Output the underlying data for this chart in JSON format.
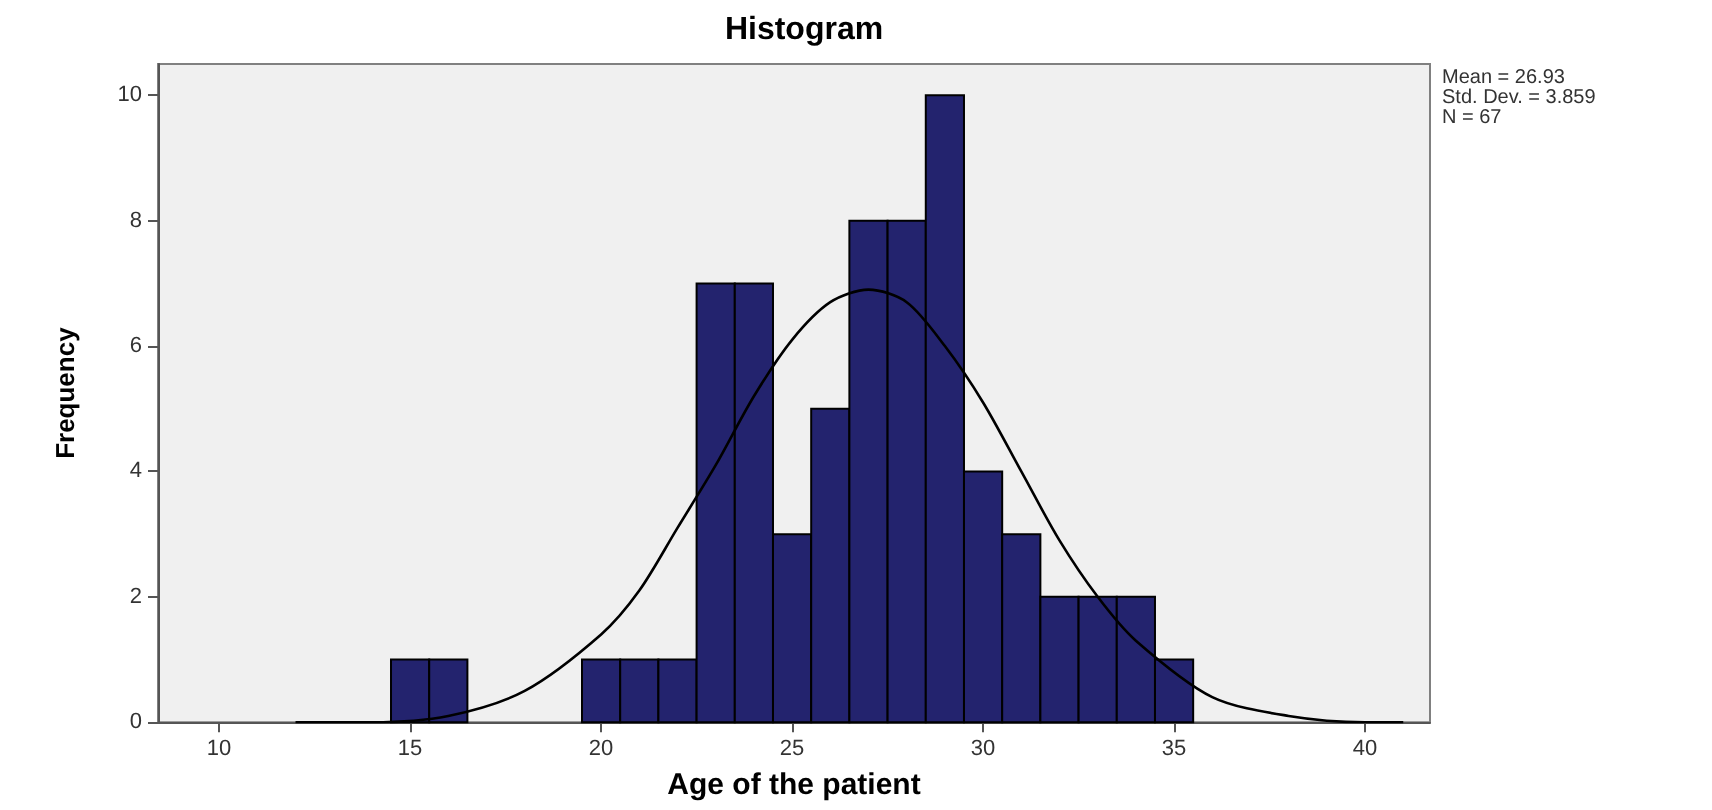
{
  "chart_data": {
    "type": "histogram",
    "title": "Histogram",
    "xlabel": "Age of the patient",
    "ylabel": "Frequency",
    "annotations": [
      "Mean = 26.93",
      "Std. Dev. = 3.859",
      "N = 67"
    ],
    "bins": [
      14.5,
      15.5,
      16.5,
      17.5,
      18.5,
      19.5,
      20.5,
      21.5,
      22.5,
      23.5,
      24.5,
      25.5,
      26.5,
      27.5,
      28.5,
      29.5,
      30.5,
      31.5,
      32.5,
      33.5,
      34.5,
      35.5
    ],
    "series": [
      {
        "color": "#23236e",
        "values": [
          1,
          1,
          0,
          0,
          0,
          1,
          1,
          1,
          7,
          7,
          3,
          5,
          8,
          8,
          10,
          4,
          3,
          2,
          2,
          2,
          1
        ]
      },
      {
        "type": "line",
        "color": "#000000",
        "x": [
          12,
          14,
          16,
          18,
          20,
          21,
          22,
          23,
          24,
          25,
          26,
          27,
          28,
          29,
          30,
          31,
          32,
          33,
          34,
          36,
          38,
          40,
          41
        ],
        "values": [
          0.0,
          0.0,
          0.1,
          0.5,
          1.4,
          2.1,
          3.1,
          4.1,
          5.2,
          6.1,
          6.7,
          6.9,
          6.7,
          6.0,
          5.1,
          4.0,
          2.9,
          2.0,
          1.3,
          0.4,
          0.1,
          0.0,
          0.0
        ]
      }
    ],
    "xlim": [
      8.4,
      41.7
    ],
    "xticks": [
      10,
      15,
      20,
      25,
      30,
      35,
      40
    ],
    "ylim": [
      0,
      10.5
    ],
    "yticks": [
      0,
      2,
      4,
      6,
      8,
      10
    ],
    "grid": false,
    "marker": "none",
    "line_style": "solid"
  }
}
